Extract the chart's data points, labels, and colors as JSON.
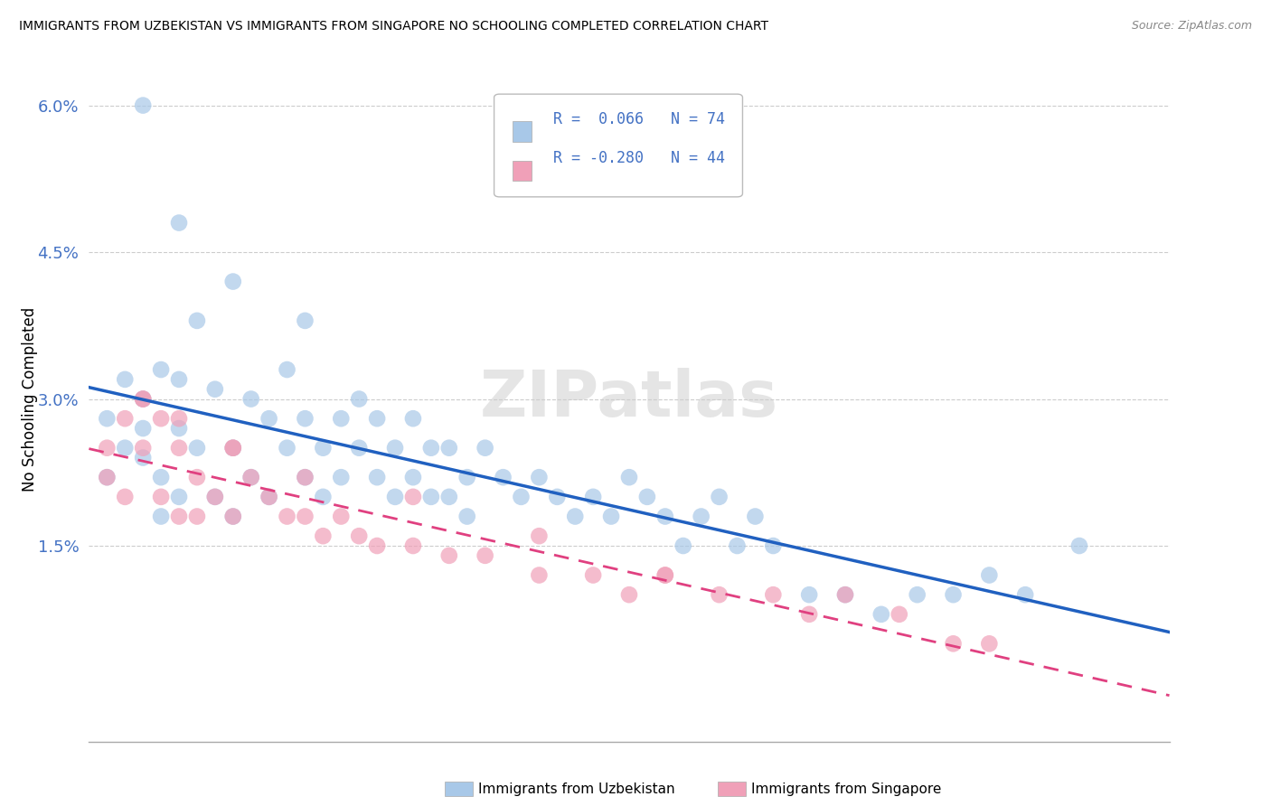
{
  "title": "IMMIGRANTS FROM UZBEKISTAN VS IMMIGRANTS FROM SINGAPORE NO SCHOOLING COMPLETED CORRELATION CHART",
  "source": "Source: ZipAtlas.com",
  "ylabel": "No Schooling Completed",
  "color_uzbekistan": "#a8c8e8",
  "color_singapore": "#f0a0b8",
  "color_uzbekistan_line": "#2060c0",
  "color_singapore_line": "#e04080",
  "watermark": "ZIPatlas",
  "legend_r1": "R =  0.066",
  "legend_n1": "N = 74",
  "legend_r2": "R = -0.280",
  "legend_n2": "N = 44",
  "xlim": [
    0.0,
    0.06
  ],
  "ylim": [
    -0.005,
    0.065
  ],
  "ytick_vals": [
    0.015,
    0.03,
    0.045,
    0.06
  ],
  "ytick_labels": [
    "1.5%",
    "3.0%",
    "4.5%",
    "6.0%"
  ],
  "uz_x": [
    0.001,
    0.001,
    0.002,
    0.002,
    0.003,
    0.003,
    0.003,
    0.004,
    0.004,
    0.004,
    0.005,
    0.005,
    0.005,
    0.006,
    0.006,
    0.007,
    0.007,
    0.008,
    0.008,
    0.009,
    0.009,
    0.01,
    0.01,
    0.011,
    0.011,
    0.012,
    0.012,
    0.013,
    0.013,
    0.014,
    0.014,
    0.015,
    0.015,
    0.016,
    0.016,
    0.017,
    0.017,
    0.018,
    0.018,
    0.019,
    0.019,
    0.02,
    0.02,
    0.021,
    0.021,
    0.022,
    0.023,
    0.024,
    0.025,
    0.026,
    0.027,
    0.028,
    0.029,
    0.03,
    0.031,
    0.032,
    0.033,
    0.034,
    0.035,
    0.036,
    0.037,
    0.038,
    0.04,
    0.042,
    0.044,
    0.046,
    0.048,
    0.05,
    0.052,
    0.055,
    0.003,
    0.005,
    0.008,
    0.012
  ],
  "uz_y": [
    0.028,
    0.022,
    0.032,
    0.025,
    0.03,
    0.027,
    0.024,
    0.033,
    0.022,
    0.018,
    0.027,
    0.032,
    0.02,
    0.025,
    0.038,
    0.02,
    0.031,
    0.025,
    0.018,
    0.03,
    0.022,
    0.028,
    0.02,
    0.033,
    0.025,
    0.022,
    0.028,
    0.025,
    0.02,
    0.028,
    0.022,
    0.03,
    0.025,
    0.028,
    0.022,
    0.025,
    0.02,
    0.028,
    0.022,
    0.025,
    0.02,
    0.025,
    0.02,
    0.022,
    0.018,
    0.025,
    0.022,
    0.02,
    0.022,
    0.02,
    0.018,
    0.02,
    0.018,
    0.022,
    0.02,
    0.018,
    0.015,
    0.018,
    0.02,
    0.015,
    0.018,
    0.015,
    0.01,
    0.01,
    0.008,
    0.01,
    0.01,
    0.012,
    0.01,
    0.015,
    0.06,
    0.048,
    0.042,
    0.038
  ],
  "sg_x": [
    0.001,
    0.001,
    0.002,
    0.002,
    0.003,
    0.003,
    0.004,
    0.004,
    0.005,
    0.005,
    0.006,
    0.006,
    0.007,
    0.008,
    0.008,
    0.009,
    0.01,
    0.011,
    0.012,
    0.013,
    0.014,
    0.015,
    0.016,
    0.018,
    0.02,
    0.022,
    0.025,
    0.028,
    0.03,
    0.032,
    0.035,
    0.038,
    0.04,
    0.042,
    0.045,
    0.048,
    0.05,
    0.032,
    0.025,
    0.018,
    0.012,
    0.008,
    0.005,
    0.003
  ],
  "sg_y": [
    0.025,
    0.022,
    0.028,
    0.02,
    0.03,
    0.025,
    0.028,
    0.02,
    0.025,
    0.018,
    0.022,
    0.018,
    0.02,
    0.018,
    0.025,
    0.022,
    0.02,
    0.018,
    0.018,
    0.016,
    0.018,
    0.016,
    0.015,
    0.015,
    0.014,
    0.014,
    0.012,
    0.012,
    0.01,
    0.012,
    0.01,
    0.01,
    0.008,
    0.01,
    0.008,
    0.005,
    0.005,
    0.012,
    0.016,
    0.02,
    0.022,
    0.025,
    0.028,
    0.03
  ]
}
